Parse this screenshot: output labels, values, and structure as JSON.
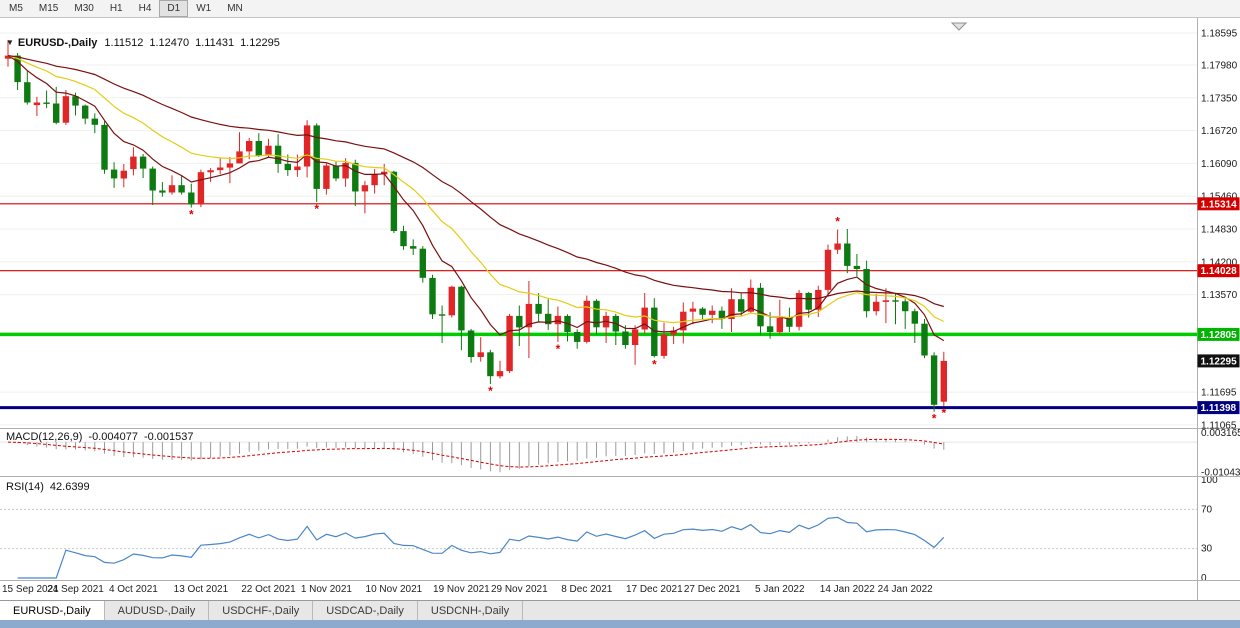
{
  "toolbar": {
    "timeframes": [
      "M5",
      "M15",
      "M30",
      "H1",
      "H4",
      "D1",
      "W1",
      "MN"
    ],
    "active_timeframe": "D1"
  },
  "chart": {
    "title": {
      "collapse_arrow": "▼",
      "symbol": "EURUSD-,Daily",
      "open": "1.11512",
      "high": "1.12470",
      "low": "1.11431",
      "close": "1.12295"
    }
  },
  "indicator_headers": {
    "macd_label": "MACD(12,26,9)",
    "macd_value_main": "-0.004077",
    "macd_value_signal": "-0.001537",
    "rsi_label": "RSI(14)",
    "rsi_value": "42.6399"
  },
  "tabs": {
    "items": [
      {
        "label": "EURUSD-,Daily",
        "active": true
      },
      {
        "label": "AUDUSD-,Daily",
        "active": false
      },
      {
        "label": "USDCHF-,Daily",
        "active": false
      },
      {
        "label": "USDCAD-,Daily",
        "active": false
      },
      {
        "label": "USDCNH-,Daily",
        "active": false
      }
    ]
  },
  "chart_data": {
    "type": "candlestick",
    "symbol": "EURUSD-,Daily",
    "timeframe": "Daily",
    "candles": [
      [
        1.181,
        1.1846,
        1.1795,
        1.1816
      ],
      [
        1.1816,
        1.1821,
        1.175,
        1.1765
      ],
      [
        1.1765,
        1.1788,
        1.1722,
        1.1726
      ],
      [
        1.1721,
        1.1737,
        1.17,
        1.1726
      ],
      [
        1.1726,
        1.1749,
        1.1715,
        1.1724
      ],
      [
        1.1724,
        1.1756,
        1.1684,
        1.1687
      ],
      [
        1.1687,
        1.175,
        1.1683,
        1.1738
      ],
      [
        1.1738,
        1.1745,
        1.1701,
        1.172
      ],
      [
        1.172,
        1.1722,
        1.1684,
        1.1695
      ],
      [
        1.1695,
        1.1705,
        1.1667,
        1.1683
      ],
      [
        1.1683,
        1.169,
        1.1589,
        1.1597
      ],
      [
        1.1597,
        1.1611,
        1.1562,
        1.158
      ],
      [
        1.158,
        1.1608,
        1.1563,
        1.1595
      ],
      [
        1.1598,
        1.164,
        1.1586,
        1.1622
      ],
      [
        1.1622,
        1.1627,
        1.1581,
        1.1599
      ],
      [
        1.1599,
        1.1603,
        1.1529,
        1.1557
      ],
      [
        1.1557,
        1.1573,
        1.1545,
        1.1553
      ],
      [
        1.1553,
        1.1586,
        1.1549,
        1.1567
      ],
      [
        1.1567,
        1.1586,
        1.1549,
        1.1553
      ],
      [
        1.1553,
        1.157,
        1.1524,
        1.153
      ],
      [
        1.153,
        1.1597,
        1.1525,
        1.1592
      ],
      [
        1.1592,
        1.16,
        1.1573,
        1.1596
      ],
      [
        1.1596,
        1.1619,
        1.1588,
        1.1601
      ],
      [
        1.1601,
        1.1621,
        1.1571,
        1.1609
      ],
      [
        1.1609,
        1.1669,
        1.1609,
        1.1632
      ],
      [
        1.1632,
        1.1658,
        1.1617,
        1.1652
      ],
      [
        1.1652,
        1.1667,
        1.1621,
        1.1624
      ],
      [
        1.1624,
        1.1656,
        1.162,
        1.1643
      ],
      [
        1.1643,
        1.1665,
        1.1591,
        1.1608
      ],
      [
        1.1608,
        1.1626,
        1.1585,
        1.1596
      ],
      [
        1.1596,
        1.1626,
        1.1583,
        1.1603
      ],
      [
        1.1603,
        1.1692,
        1.1582,
        1.1682
      ],
      [
        1.1682,
        1.1686,
        1.1535,
        1.156
      ],
      [
        1.156,
        1.1609,
        1.1549,
        1.1605
      ],
      [
        1.1605,
        1.1612,
        1.1575,
        1.158
      ],
      [
        1.158,
        1.1619,
        1.1564,
        1.161
      ],
      [
        1.161,
        1.1616,
        1.1527,
        1.1555
      ],
      [
        1.1555,
        1.1575,
        1.1513,
        1.1567
      ],
      [
        1.1567,
        1.1598,
        1.1551,
        1.1588
      ],
      [
        1.1588,
        1.1608,
        1.1567,
        1.1593
      ],
      [
        1.1593,
        1.1595,
        1.1475,
        1.1479
      ],
      [
        1.1479,
        1.1489,
        1.1443,
        1.145
      ],
      [
        1.145,
        1.1463,
        1.1433,
        1.1445
      ],
      [
        1.1445,
        1.145,
        1.138,
        1.1389
      ],
      [
        1.1389,
        1.1395,
        1.131,
        1.1319
      ],
      [
        1.1319,
        1.1336,
        1.1264,
        1.1317
      ],
      [
        1.1317,
        1.1374,
        1.1313,
        1.1372
      ],
      [
        1.1372,
        1.1374,
        1.125,
        1.1288
      ],
      [
        1.1288,
        1.1291,
        1.1226,
        1.1237
      ],
      [
        1.1237,
        1.1275,
        1.1228,
        1.1246
      ],
      [
        1.1246,
        1.1251,
        1.1185,
        1.12
      ],
      [
        1.12,
        1.123,
        1.1196,
        1.121
      ],
      [
        1.121,
        1.132,
        1.1206,
        1.1316
      ],
      [
        1.1316,
        1.1336,
        1.1258,
        1.1294
      ],
      [
        1.1294,
        1.1383,
        1.1235,
        1.1339
      ],
      [
        1.1339,
        1.136,
        1.1305,
        1.132
      ],
      [
        1.132,
        1.1348,
        1.1289,
        1.13
      ],
      [
        1.13,
        1.1334,
        1.1266,
        1.1316
      ],
      [
        1.1316,
        1.1319,
        1.1267,
        1.1285
      ],
      [
        1.1285,
        1.129,
        1.1253,
        1.1266
      ],
      [
        1.1266,
        1.1355,
        1.1263,
        1.1345
      ],
      [
        1.1345,
        1.1348,
        1.128,
        1.1294
      ],
      [
        1.1294,
        1.1324,
        1.1264,
        1.1316
      ],
      [
        1.1316,
        1.132,
        1.126,
        1.1286
      ],
      [
        1.1286,
        1.1298,
        1.1253,
        1.126
      ],
      [
        1.126,
        1.1298,
        1.1222,
        1.129
      ],
      [
        1.129,
        1.136,
        1.1282,
        1.1332
      ],
      [
        1.1332,
        1.135,
        1.1236,
        1.1239
      ],
      [
        1.1239,
        1.1303,
        1.1234,
        1.128
      ],
      [
        1.128,
        1.1295,
        1.1262,
        1.1288
      ],
      [
        1.1288,
        1.1342,
        1.1263,
        1.1324
      ],
      [
        1.1324,
        1.1343,
        1.13,
        1.133
      ],
      [
        1.133,
        1.1333,
        1.1308,
        1.1318
      ],
      [
        1.1318,
        1.1336,
        1.1302,
        1.1326
      ],
      [
        1.1326,
        1.1334,
        1.1291,
        1.131
      ],
      [
        1.131,
        1.1369,
        1.1285,
        1.1348
      ],
      [
        1.1348,
        1.136,
        1.1316,
        1.1324
      ],
      [
        1.1324,
        1.1386,
        1.1321,
        1.137
      ],
      [
        1.137,
        1.1379,
        1.1279,
        1.1296
      ],
      [
        1.1296,
        1.1323,
        1.1272,
        1.1285
      ],
      [
        1.1285,
        1.1347,
        1.1281,
        1.1312
      ],
      [
        1.1312,
        1.1332,
        1.1285,
        1.1295
      ],
      [
        1.1295,
        1.1366,
        1.1288,
        1.136
      ],
      [
        1.136,
        1.1362,
        1.1313,
        1.1328
      ],
      [
        1.1328,
        1.1374,
        1.1314,
        1.1366
      ],
      [
        1.1366,
        1.1453,
        1.1355,
        1.1443
      ],
      [
        1.1443,
        1.1482,
        1.1435,
        1.1455
      ],
      [
        1.1455,
        1.1483,
        1.1398,
        1.1412
      ],
      [
        1.1412,
        1.1435,
        1.1392,
        1.1406
      ],
      [
        1.1406,
        1.1422,
        1.1313,
        1.1325
      ],
      [
        1.1325,
        1.1358,
        1.1317,
        1.1343
      ],
      [
        1.1343,
        1.1369,
        1.1302,
        1.1346
      ],
      [
        1.1346,
        1.136,
        1.13,
        1.1344
      ],
      [
        1.1344,
        1.1349,
        1.1291,
        1.1325
      ],
      [
        1.1325,
        1.133,
        1.1264,
        1.1301
      ],
      [
        1.1301,
        1.131,
        1.1235,
        1.124
      ],
      [
        1.124,
        1.1246,
        1.1132,
        1.1145
      ],
      [
        1.11512,
        1.1247,
        1.11431,
        1.12295
      ]
    ],
    "x_ticks": [
      {
        "i": 0,
        "label": "15 Sep 2021"
      },
      {
        "i": 7,
        "label": "24 Sep 2021"
      },
      {
        "i": 13,
        "label": "4 Oct 2021"
      },
      {
        "i": 20,
        "label": "13 Oct 2021"
      },
      {
        "i": 27,
        "label": "22 Oct 2021"
      },
      {
        "i": 33,
        "label": "1 Nov 2021"
      },
      {
        "i": 40,
        "label": "10 Nov 2021"
      },
      {
        "i": 47,
        "label": "19 Nov 2021"
      },
      {
        "i": 53,
        "label": "29 Nov 2021"
      },
      {
        "i": 60,
        "label": "8 Dec 2021"
      },
      {
        "i": 67,
        "label": "17 Dec 2021"
      },
      {
        "i": 73,
        "label": "27 Dec 2021"
      },
      {
        "i": 80,
        "label": "5 Jan 2022"
      },
      {
        "i": 87,
        "label": "14 Jan 2022"
      },
      {
        "i": 93,
        "label": "24 Jan 2022"
      }
    ],
    "y_axis": {
      "labels": [
        "1.18595",
        "1.17980",
        "1.17350",
        "1.16720",
        "1.16090",
        "1.15460",
        "1.14830",
        "1.14200",
        "1.13570",
        "1.11695",
        "1.11065"
      ]
    },
    "levels": [
      {
        "value": 1.15314,
        "label": "1.15314",
        "color": "#d40000",
        "width": 1.2
      },
      {
        "value": 1.14028,
        "label": "1.14028",
        "color": "#d40000",
        "width": 1.2
      },
      {
        "value": 1.12805,
        "label": "1.12805",
        "color": "#00cc00",
        "badge": "#00b400",
        "width": 3.5
      },
      {
        "value": 1.11398,
        "label": "1.11398",
        "color": "#000080",
        "width": 3
      }
    ],
    "current_price": {
      "value": 1.12295,
      "label": "1.12295",
      "badge": "#101010"
    },
    "colors": {
      "bull": "#e02626",
      "bear": "#0e7a12",
      "ema_fast": "#7b1010",
      "ema_mid": "#e3cd17",
      "ema_slow": "#7b1010",
      "macd_hist": "#9a9a9a",
      "macd_signal": "#d40000",
      "rsi": "#4a86c8"
    },
    "overlays": [
      {
        "type": "ema",
        "period": 8,
        "color_key": "ema_fast"
      },
      {
        "type": "ema",
        "period": 18,
        "color_key": "ema_mid"
      },
      {
        "type": "ema",
        "period": 40,
        "color_key": "ema_slow"
      }
    ],
    "marks": {
      "glyph": "*",
      "color": "#e00000",
      "below": [
        19,
        32,
        50,
        57,
        67,
        96,
        97
      ],
      "above": [
        86
      ]
    },
    "indicators": {
      "macd": {
        "name": "MACD",
        "fast": 12,
        "slow": 26,
        "signal": 9,
        "scale_labels": [
          {
            "v": 0.003165,
            "label": "0.003165"
          },
          {
            "v": -0.01043,
            "label": "-0.01043"
          }
        ]
      },
      "rsi": {
        "name": "RSI",
        "period": 14,
        "scale_labels": [
          {
            "v": 100,
            "label": "100"
          },
          {
            "v": 70,
            "label": "70"
          },
          {
            "v": 30,
            "label": "30"
          },
          {
            "v": 0,
            "label": "0"
          }
        ],
        "levels": [
          70,
          30
        ]
      }
    }
  }
}
